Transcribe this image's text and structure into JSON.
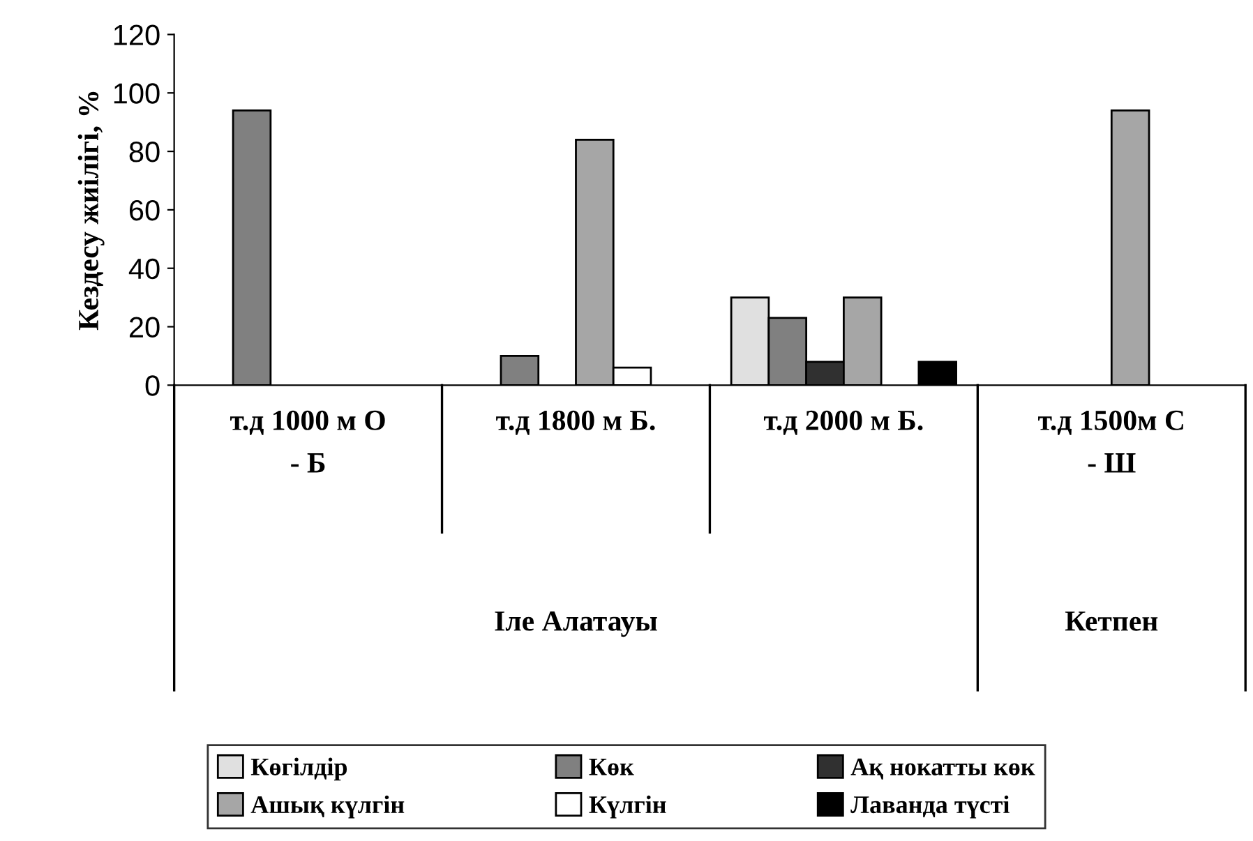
{
  "chart_data": {
    "type": "bar",
    "ylabel": "Кездесу жиілігі, %",
    "categories": [
      "т.д 1000 м О - Б",
      "т.д 1800 м Б.",
      "т.д 2000 м Б.",
      "т.д 1500м С - Ш"
    ],
    "series": [
      {
        "name": "Көгілдір",
        "color": "#e0e0e0",
        "values": [
          null,
          null,
          30,
          null
        ]
      },
      {
        "name": "Көк",
        "color": "#808080",
        "values": [
          94,
          10,
          23,
          null
        ]
      },
      {
        "name": "Ақ нокатты көк",
        "color": "#303030",
        "values": [
          null,
          null,
          8,
          null
        ]
      },
      {
        "name": "Ашық күлгін",
        "color": "#a6a6a6",
        "values": [
          null,
          84,
          30,
          94
        ]
      },
      {
        "name": "Күлгін",
        "color": "#ffffff",
        "values": [
          null,
          6,
          null,
          null
        ]
      },
      {
        "name": "Лаванда түсті",
        "color": "#000000",
        "values": [
          null,
          null,
          8,
          null
        ]
      }
    ],
    "annotations": [
      "Іле Алатауы",
      "Кетпен"
    ],
    "ylim": [
      0,
      120
    ],
    "yticks": [
      0,
      20,
      40,
      60,
      80,
      100,
      120
    ],
    "grid": false,
    "legend": "bottom"
  }
}
